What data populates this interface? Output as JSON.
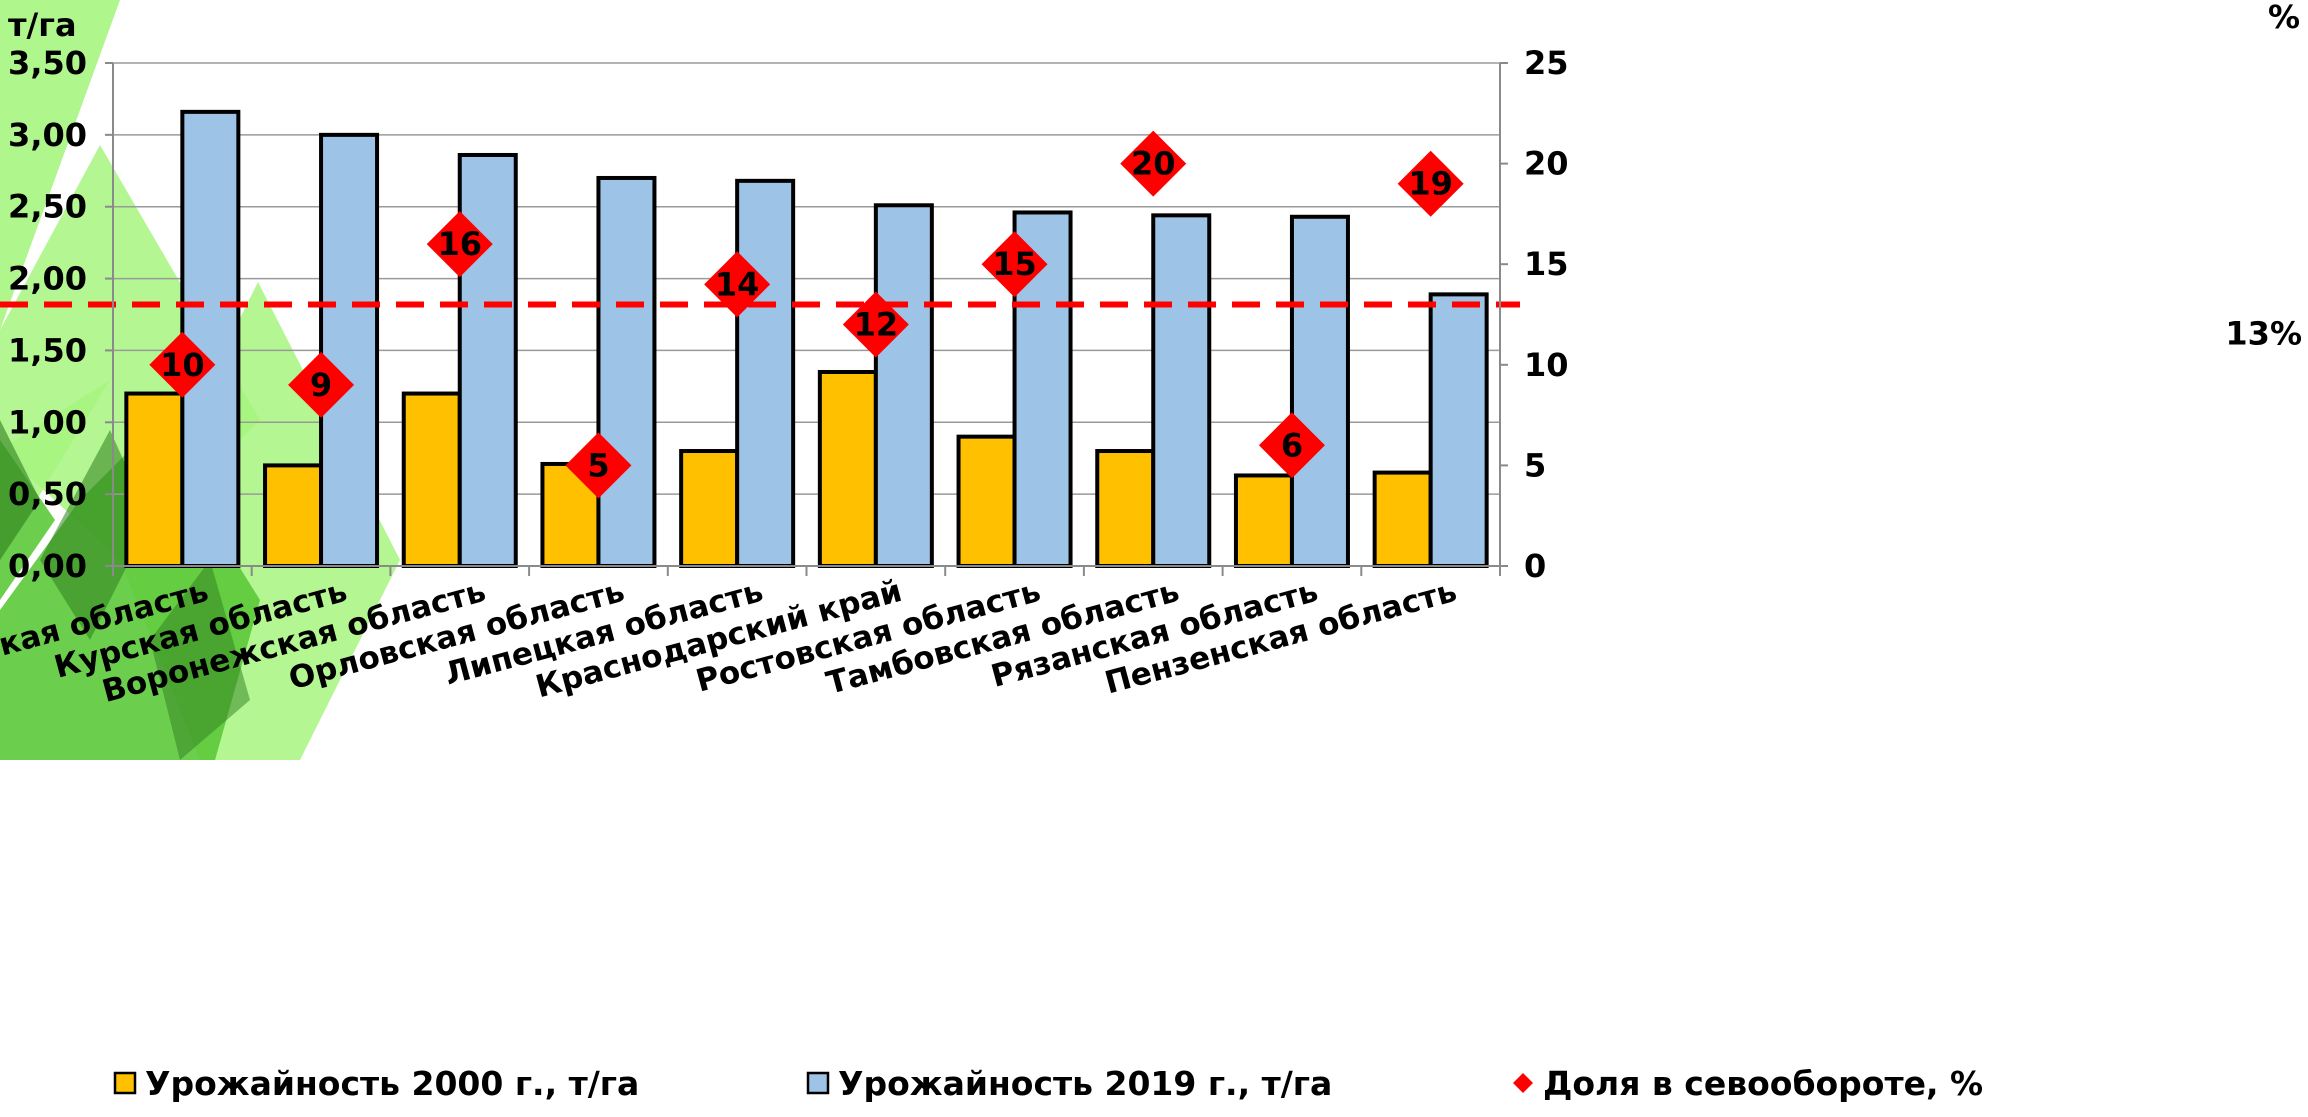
{
  "chart_data": {
    "type": "bar",
    "left_unit_label": "т/га",
    "right_unit_label": "%",
    "categories": [
      "Белгородская область",
      "Курская область",
      "Воронежская область",
      "Орловская область",
      "Липецкая область",
      "Краснодарский край",
      "Ростовская область",
      "Тамбовская область",
      "Рязанская область",
      "Пензенская область"
    ],
    "series": [
      {
        "name": "Урожайность 2000 г., т/га",
        "axis": "left",
        "kind": "bar",
        "color": "#FFC000",
        "values": [
          1.2,
          0.7,
          1.2,
          0.71,
          0.8,
          1.35,
          0.9,
          0.8,
          0.63,
          0.65
        ]
      },
      {
        "name": "Урожайность 2019 г., т/га",
        "axis": "left",
        "kind": "bar",
        "color": "#9DC3E6",
        "values": [
          3.16,
          3.0,
          2.86,
          2.7,
          2.68,
          2.51,
          2.46,
          2.44,
          2.43,
          1.89
        ]
      },
      {
        "name": "Доля в севообороте, %",
        "axis": "right",
        "kind": "marker",
        "color": "#FF0000",
        "values": [
          10,
          9,
          16,
          5,
          14,
          12,
          15,
          20,
          6,
          19
        ],
        "labels": [
          "10",
          "9",
          "16",
          "5",
          "14",
          "12",
          "15",
          "20",
          "6",
          "19"
        ]
      }
    ],
    "left_axis": {
      "min": 0,
      "max": 3.5,
      "step": 0.5,
      "tick_labels": [
        "0,00",
        "0,50",
        "1,00",
        "1,50",
        "2,00",
        "2,50",
        "3,00",
        "3,50"
      ]
    },
    "right_axis": {
      "min": 0,
      "max": 25,
      "step": 5,
      "tick_labels": [
        "0",
        "5",
        "10",
        "15",
        "20",
        "25"
      ]
    },
    "reference_line": {
      "value": 13,
      "axis": "right",
      "label": "13%",
      "color": "#FF0000",
      "style": "dashed"
    },
    "grid": true,
    "legend_position": "bottom"
  },
  "colors": {
    "bg_green_light": "#A6F57F",
    "bg_green_mid": "#5CC93A",
    "bg_green_dark": "#2E7D1E"
  }
}
